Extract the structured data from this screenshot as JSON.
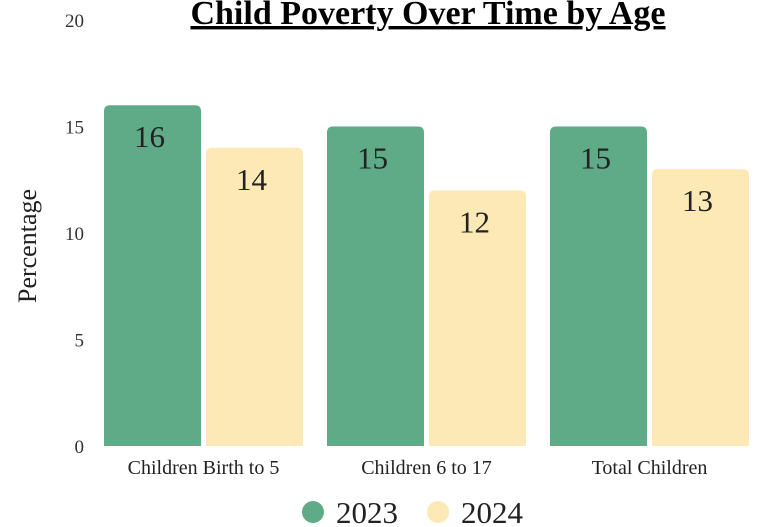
{
  "chart_data": {
    "type": "bar",
    "title": "Child Poverty Over Time by Age",
    "xlabel": "",
    "ylabel": "Percentage",
    "categories": [
      "Children Birth to 5",
      "Children 6 to 17",
      "Total Children"
    ],
    "series": [
      {
        "name": "2023",
        "values": [
          16,
          15,
          15
        ],
        "color": "#5faa87"
      },
      {
        "name": "2024",
        "values": [
          14,
          12,
          13
        ],
        "color": "#fde9b6"
      }
    ],
    "ylim": [
      0,
      20
    ],
    "yticks": [
      "0",
      "5",
      "10",
      "15",
      "20"
    ],
    "grid": false,
    "legend_position": "bottom"
  }
}
